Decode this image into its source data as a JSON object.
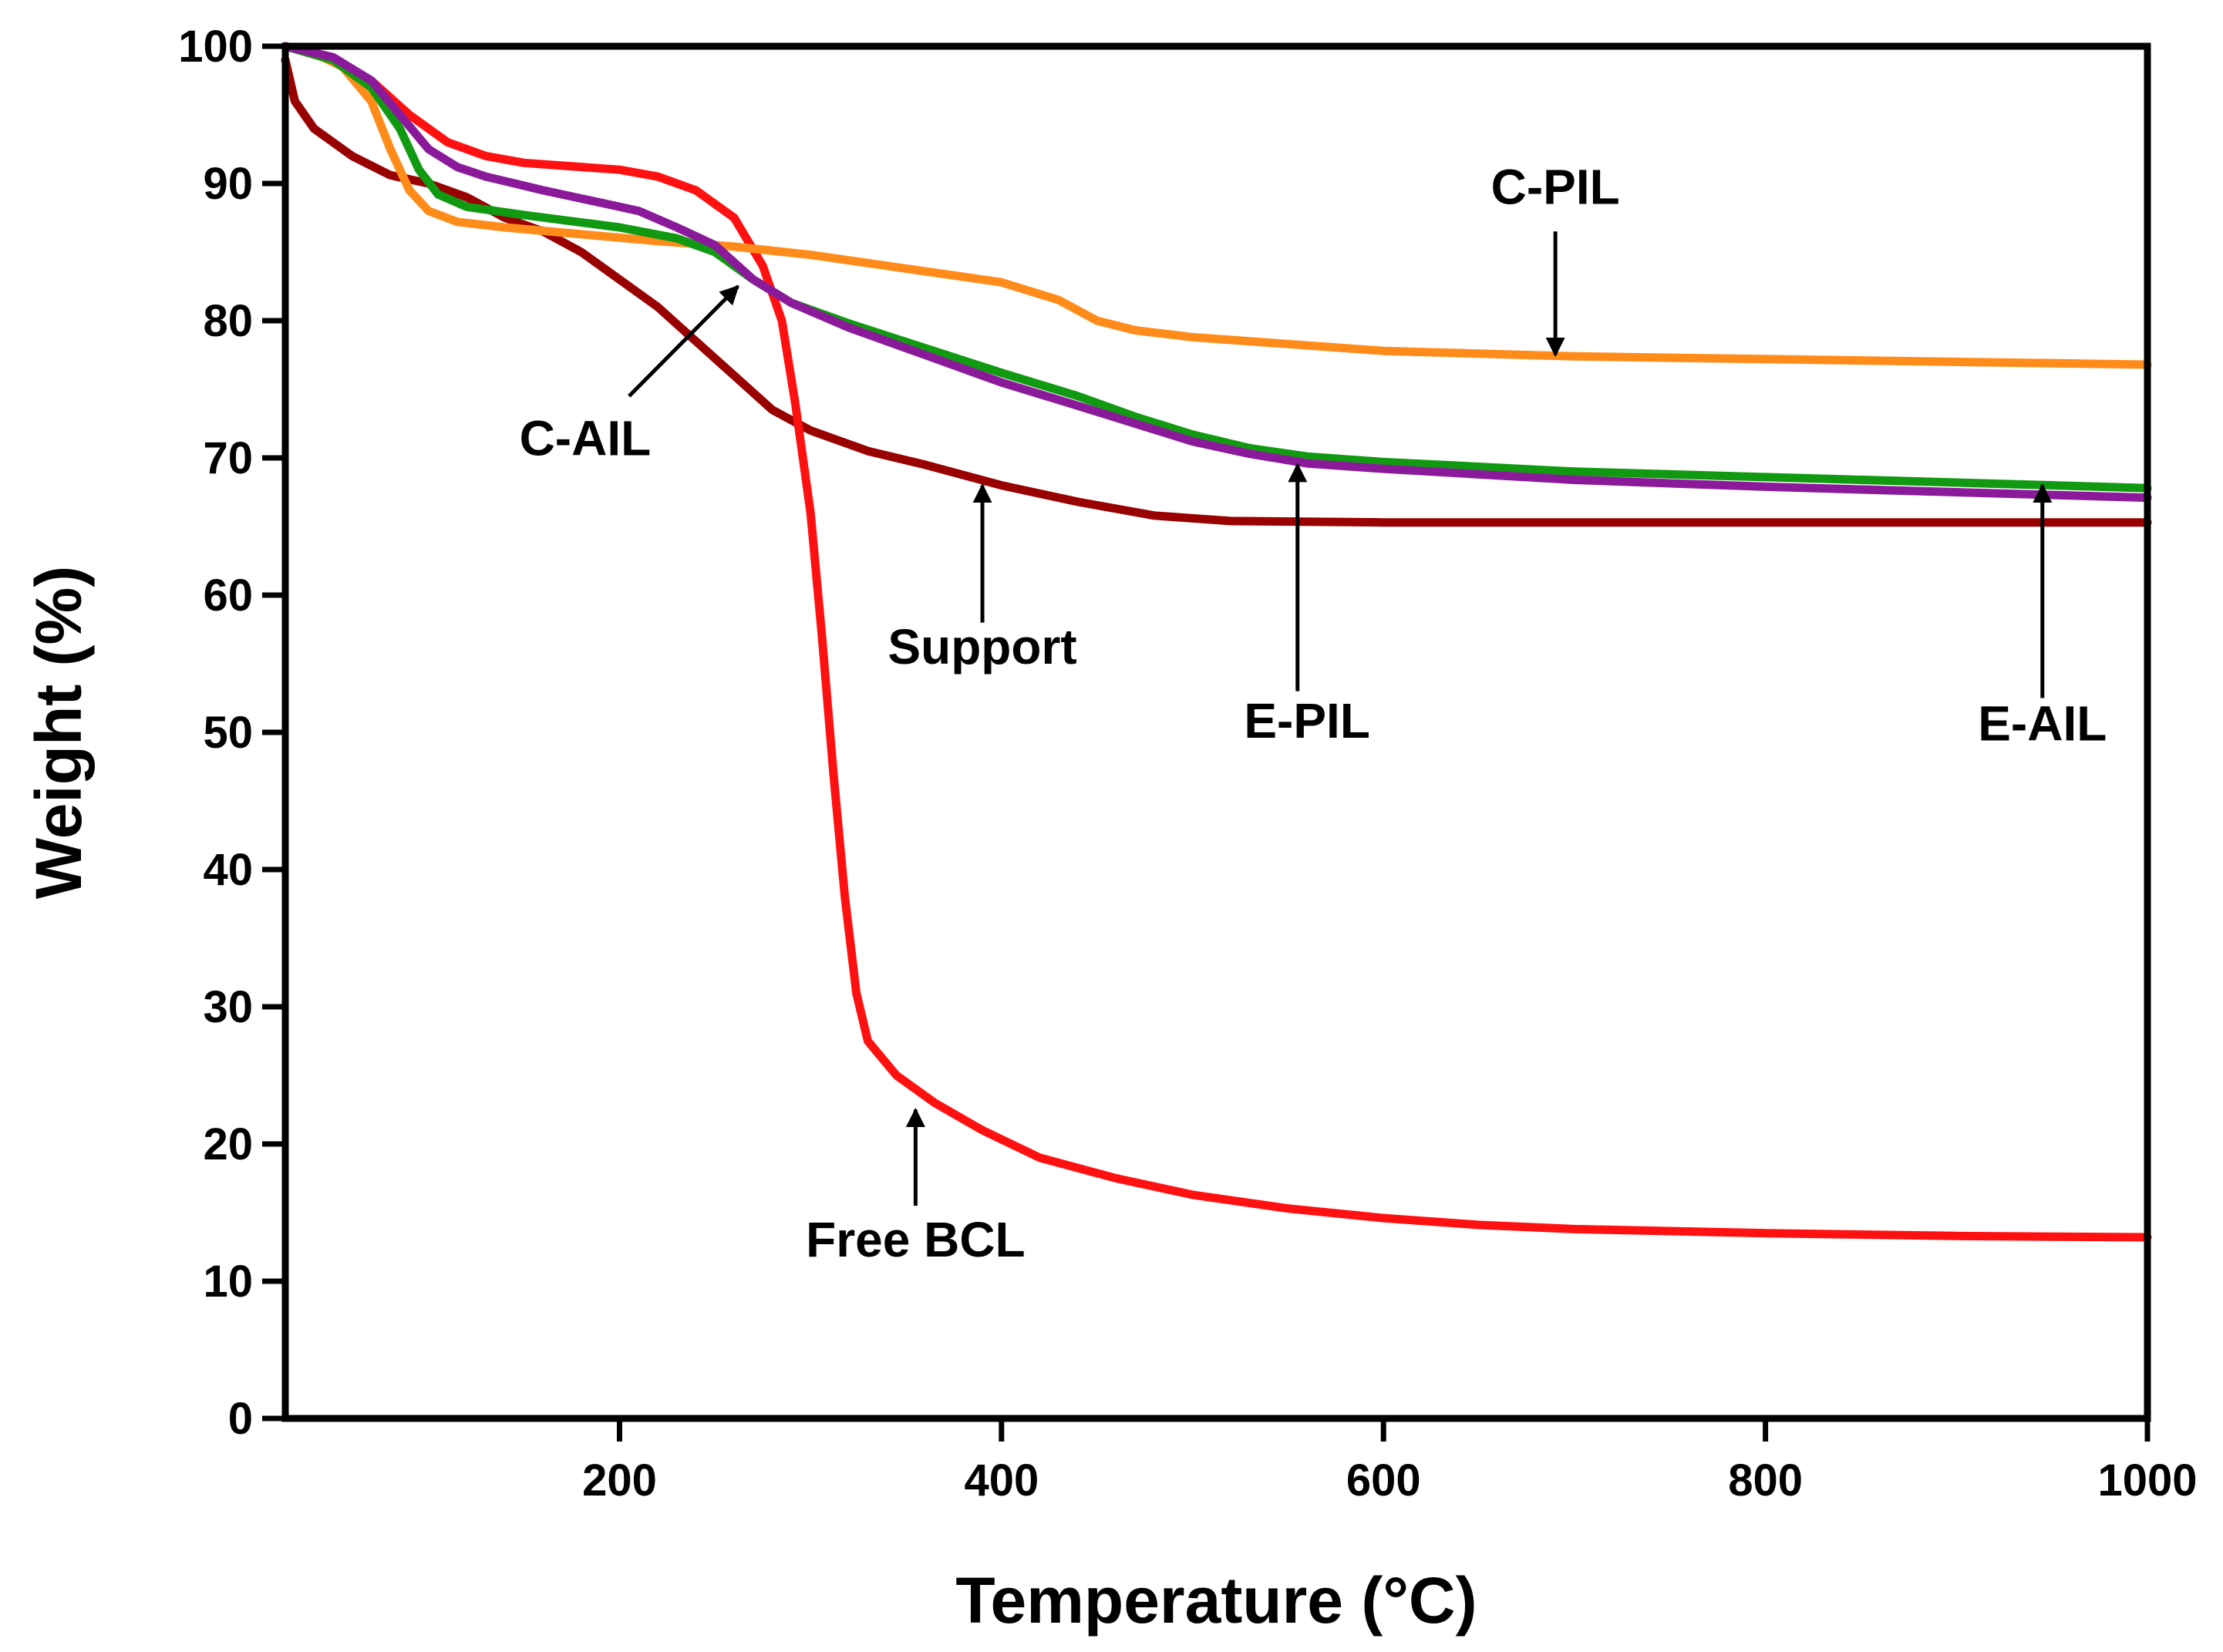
{
  "chart_data": {
    "type": "line",
    "title": "",
    "xlabel": "Temperature (°C)",
    "ylabel": "Weight (%)",
    "xlim": [
      25,
      1000
    ],
    "ylim": [
      0,
      100
    ],
    "xticks": [
      200,
      400,
      600,
      800,
      1000
    ],
    "yticks": [
      0,
      10,
      20,
      30,
      40,
      50,
      60,
      70,
      80,
      90,
      100
    ],
    "grid": false,
    "series": [
      {
        "name": "Support",
        "color": "#990000",
        "points": [
          [
            25,
            99
          ],
          [
            30,
            96
          ],
          [
            40,
            94
          ],
          [
            60,
            92
          ],
          [
            80,
            90.6
          ],
          [
            100,
            90
          ],
          [
            120,
            89
          ],
          [
            140,
            87.5
          ],
          [
            160,
            86.5
          ],
          [
            180,
            85
          ],
          [
            200,
            83
          ],
          [
            220,
            81
          ],
          [
            240,
            78.5
          ],
          [
            260,
            76
          ],
          [
            280,
            73.5
          ],
          [
            300,
            72
          ],
          [
            330,
            70.5
          ],
          [
            360,
            69.5
          ],
          [
            400,
            68
          ],
          [
            440,
            66.8
          ],
          [
            480,
            65.8
          ],
          [
            520,
            65.4
          ],
          [
            600,
            65.3
          ],
          [
            700,
            65.3
          ],
          [
            800,
            65.3
          ],
          [
            900,
            65.3
          ],
          [
            1000,
            65.3
          ]
        ]
      },
      {
        "name": "Free BCL",
        "color": "#ff1111",
        "points": [
          [
            25,
            100
          ],
          [
            50,
            99
          ],
          [
            70,
            97.5
          ],
          [
            90,
            95
          ],
          [
            110,
            93
          ],
          [
            130,
            92
          ],
          [
            150,
            91.5
          ],
          [
            170,
            91.3
          ],
          [
            200,
            91
          ],
          [
            220,
            90.5
          ],
          [
            240,
            89.5
          ],
          [
            260,
            87.5
          ],
          [
            275,
            84
          ],
          [
            285,
            80
          ],
          [
            292,
            74
          ],
          [
            300,
            66
          ],
          [
            306,
            57
          ],
          [
            312,
            47
          ],
          [
            318,
            38
          ],
          [
            324,
            31
          ],
          [
            330,
            27.5
          ],
          [
            345,
            25
          ],
          [
            365,
            23
          ],
          [
            390,
            21
          ],
          [
            420,
            19
          ],
          [
            460,
            17.5
          ],
          [
            500,
            16.3
          ],
          [
            550,
            15.3
          ],
          [
            600,
            14.6
          ],
          [
            650,
            14.1
          ],
          [
            700,
            13.8
          ],
          [
            800,
            13.5
          ],
          [
            900,
            13.3
          ],
          [
            1000,
            13.2
          ]
        ]
      },
      {
        "name": "C-PIL",
        "color": "#ff8c1a",
        "points": [
          [
            25,
            100
          ],
          [
            40,
            99.5
          ],
          [
            55,
            98.5
          ],
          [
            70,
            96
          ],
          [
            80,
            92.5
          ],
          [
            90,
            89.5
          ],
          [
            100,
            88
          ],
          [
            115,
            87.2
          ],
          [
            140,
            86.8
          ],
          [
            180,
            86.3
          ],
          [
            220,
            85.8
          ],
          [
            260,
            85.4
          ],
          [
            300,
            84.8
          ],
          [
            350,
            83.8
          ],
          [
            400,
            82.8
          ],
          [
            430,
            81.5
          ],
          [
            450,
            80
          ],
          [
            470,
            79.3
          ],
          [
            500,
            78.8
          ],
          [
            550,
            78.3
          ],
          [
            600,
            77.8
          ],
          [
            700,
            77.4
          ],
          [
            800,
            77.2
          ],
          [
            900,
            77
          ],
          [
            1000,
            76.8
          ]
        ]
      },
      {
        "name": "E-AIL",
        "color": "#119911",
        "points": [
          [
            25,
            100
          ],
          [
            50,
            99
          ],
          [
            70,
            97
          ],
          [
            85,
            94
          ],
          [
            95,
            91
          ],
          [
            105,
            89.2
          ],
          [
            120,
            88.3
          ],
          [
            150,
            87.7
          ],
          [
            200,
            86.8
          ],
          [
            230,
            86
          ],
          [
            250,
            85
          ],
          [
            270,
            83
          ],
          [
            290,
            81.3
          ],
          [
            320,
            79.8
          ],
          [
            360,
            78
          ],
          [
            400,
            76.2
          ],
          [
            440,
            74.5
          ],
          [
            470,
            73
          ],
          [
            500,
            71.7
          ],
          [
            530,
            70.7
          ],
          [
            560,
            70.1
          ],
          [
            600,
            69.7
          ],
          [
            700,
            69
          ],
          [
            800,
            68.6
          ],
          [
            900,
            68.2
          ],
          [
            1000,
            67.8
          ]
        ]
      },
      {
        "name": "E-PIL",
        "color": "#8b1a9b",
        "points": [
          [
            25,
            100
          ],
          [
            50,
            99.2
          ],
          [
            70,
            97.5
          ],
          [
            85,
            95
          ],
          [
            100,
            92.5
          ],
          [
            115,
            91.2
          ],
          [
            130,
            90.5
          ],
          [
            160,
            89.5
          ],
          [
            190,
            88.6
          ],
          [
            210,
            88
          ],
          [
            230,
            86.8
          ],
          [
            250,
            85.5
          ],
          [
            270,
            83
          ],
          [
            290,
            81.3
          ],
          [
            320,
            79.5
          ],
          [
            360,
            77.5
          ],
          [
            400,
            75.5
          ],
          [
            440,
            73.8
          ],
          [
            470,
            72.5
          ],
          [
            500,
            71.2
          ],
          [
            530,
            70.3
          ],
          [
            560,
            69.6
          ],
          [
            600,
            69.2
          ],
          [
            700,
            68.4
          ],
          [
            800,
            67.9
          ],
          [
            900,
            67.5
          ],
          [
            1000,
            67.1
          ]
        ]
      }
    ],
    "annotations": [
      {
        "label": "C-AIL",
        "text_at": [
          182,
          70.2
        ],
        "arrow_from": [
          205,
          74.5
        ],
        "arrow_to": [
          262,
          82.5
        ]
      },
      {
        "label": "Support",
        "text_at": [
          390,
          55
        ],
        "arrow_from": [
          390,
          58
        ],
        "arrow_to": [
          390,
          68
        ]
      },
      {
        "label": "E-PIL",
        "text_at": [
          560,
          49.6
        ],
        "arrow_from": [
          555,
          53
        ],
        "arrow_to": [
          555,
          69.5
        ]
      },
      {
        "label": "E-AIL",
        "text_at": [
          945,
          49.4
        ],
        "arrow_from": [
          945,
          52.5
        ],
        "arrow_to": [
          945,
          68
        ]
      },
      {
        "label": "C-PIL",
        "text_at": [
          690,
          88.5
        ],
        "arrow_from": [
          690,
          86.5
        ],
        "arrow_to": [
          690,
          77.5
        ]
      },
      {
        "label": "Free BCL",
        "text_at": [
          355,
          11.8
        ],
        "arrow_from": [
          355,
          15.5
        ],
        "arrow_to": [
          355,
          22.5
        ]
      }
    ]
  }
}
